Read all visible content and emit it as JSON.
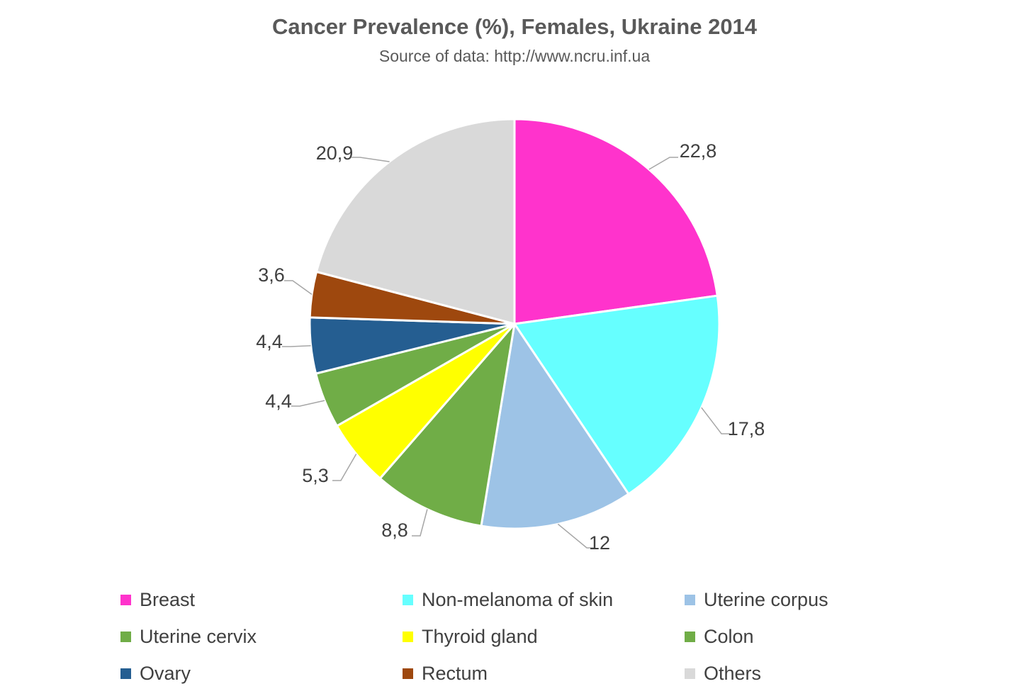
{
  "chart_data": {
    "type": "pie",
    "title": "Cancer Prevalence (%), Females, Ukraine 2014",
    "subtitle": "Source of data: http://www.ncru.inf.ua",
    "legend_placement": "bottom",
    "slices": [
      {
        "name": "Breast",
        "value": 22.8,
        "label": "22,8",
        "color": "#FF33CC"
      },
      {
        "name": "Non-melanoma of skin",
        "value": 17.8,
        "label": "17,8",
        "color": "#66FFFF"
      },
      {
        "name": "Uterine corpus",
        "value": 12,
        "label": "12",
        "color": "#9DC3E6"
      },
      {
        "name": "Colon",
        "value": 8.8,
        "label": "8,8",
        "color": "#70AD47"
      },
      {
        "name": "Thyroid gland",
        "value": 5.3,
        "label": "5,3",
        "color": "#FFFF00"
      },
      {
        "name": "Uterine cervix",
        "value": 4.4,
        "label": "4,4",
        "color": "#70AD47"
      },
      {
        "name": "Ovary",
        "value": 4.4,
        "label": "4,4",
        "color": "#255E91"
      },
      {
        "name": "Rectum",
        "value": 3.6,
        "label": "3,6",
        "color": "#9E480E"
      },
      {
        "name": "Others",
        "value": 20.9,
        "label": "20,9",
        "color": "#D9D9D9"
      }
    ],
    "legend": [
      {
        "name": "Breast",
        "color": "#FF33CC"
      },
      {
        "name": "Non-melanoma of skin",
        "color": "#66FFFF"
      },
      {
        "name": "Uterine corpus",
        "color": "#9DC3E6"
      },
      {
        "name": "Uterine cervix",
        "color": "#70AD47"
      },
      {
        "name": "Thyroid gland",
        "color": "#FFFF00"
      },
      {
        "name": "Colon",
        "color": "#70AD47"
      },
      {
        "name": "Ovary",
        "color": "#255E91"
      },
      {
        "name": "Rectum",
        "color": "#9E480E"
      },
      {
        "name": "Others",
        "color": "#D9D9D9"
      }
    ]
  }
}
